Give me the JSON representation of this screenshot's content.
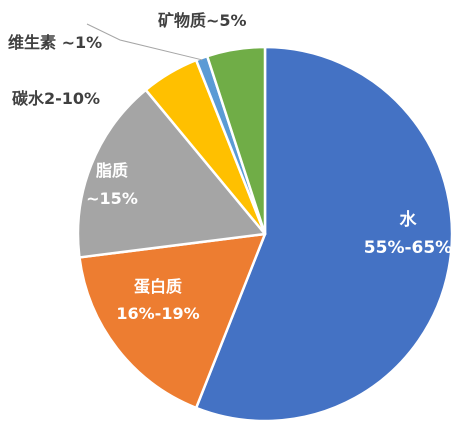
{
  "chart_data": {
    "type": "pie",
    "title": "",
    "slices": [
      {
        "name": "水",
        "range": "55%-65%",
        "value": 56,
        "color": "#4472C4",
        "label_lines": [
          "水",
          "55%-65%"
        ],
        "label_color": "#ffffff"
      },
      {
        "name": "蛋白质",
        "range": "16%-19%",
        "value": 17,
        "color": "#ED7D31",
        "label_lines": [
          "蛋白质",
          "16%-19%"
        ],
        "label_color": "#ffffff"
      },
      {
        "name": "脂质",
        "range": "~15%",
        "value": 16,
        "color": "#A5A5A5",
        "label_lines": [
          "脂质",
          "~15%"
        ],
        "label_color": "#ffffff"
      },
      {
        "name": "碳水",
        "range": "2-10%",
        "value": 5,
        "color": "#FFC000",
        "label_lines": [
          "碳水2-10%"
        ],
        "label_color": "#404040"
      },
      {
        "name": "维生素",
        "range": "~1%",
        "value": 1,
        "color": "#5B9BD5",
        "label_lines": [
          "维生素 ~1%"
        ],
        "label_color": "#404040"
      },
      {
        "name": "矿物质",
        "range": "~5%",
        "value": 5,
        "color": "#70AD47",
        "label_lines": [
          "矿物质~5%"
        ],
        "label_color": "#404040"
      }
    ]
  }
}
